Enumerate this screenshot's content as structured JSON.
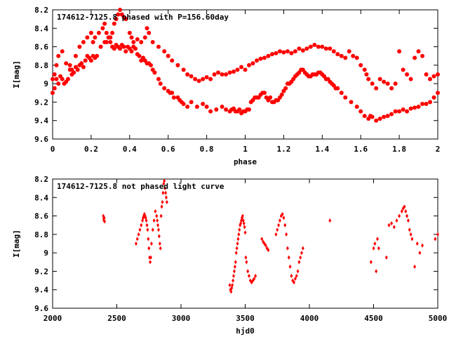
{
  "chart_data": [
    {
      "type": "scatter",
      "title": "174612-7125.8 phased with P=156.60day",
      "xlabel": "phase",
      "ylabel": "I[mag]",
      "xlim": [
        0,
        2
      ],
      "ylim": [
        9.6,
        8.2
      ],
      "y_inverted": true,
      "x_ticks": [
        "0",
        "0.2",
        "0.4",
        "0.6",
        "0.8",
        "1",
        "1.2",
        "1.4",
        "1.6",
        "1.8",
        "2"
      ],
      "x_tick_values": [
        0,
        0.2,
        0.4,
        0.6,
        0.8,
        1.0,
        1.2,
        1.4,
        1.6,
        1.8,
        2.0
      ],
      "y_ticks": [
        "8.2",
        "8.4",
        "8.6",
        "8.8",
        "9",
        "9.2",
        "9.4",
        "9.6"
      ],
      "y_tick_values": [
        8.2,
        8.4,
        8.6,
        8.8,
        9.0,
        9.2,
        9.4,
        9.6
      ],
      "marker": "plus-hexagon",
      "color": "#ff0000",
      "series": [
        {
          "x": [
            0.0,
            0.01,
            0.02,
            0.03,
            0.04,
            0.05,
            0.06,
            0.07,
            0.08,
            0.09,
            0.1,
            0.11,
            0.12,
            0.13,
            0.14,
            0.15,
            0.16,
            0.17,
            0.18,
            0.19,
            0.2,
            0.21,
            0.22,
            0.23,
            0.25,
            0.27,
            0.28,
            0.29,
            0.3,
            0.31,
            0.32,
            0.33,
            0.34,
            0.35,
            0.36,
            0.37,
            0.38,
            0.39,
            0.4,
            0.41,
            0.42,
            0.43,
            0.44,
            0.45,
            0.46,
            0.47,
            0.48,
            0.49,
            0.5,
            0.51,
            0.52,
            0.53,
            0.55,
            0.56,
            0.58,
            0.6,
            0.61,
            0.62,
            0.63,
            0.65,
            0.66,
            0.67,
            0.68,
            0.7,
            0.72,
            0.75,
            0.78,
            0.8,
            0.82,
            0.85,
            0.88,
            0.9,
            0.92,
            0.93,
            0.94,
            0.95,
            0.96,
            0.97,
            0.98,
            0.99,
            1.0,
            1.01,
            1.02,
            1.03,
            1.04,
            1.05,
            1.06,
            1.07,
            1.08,
            1.09,
            1.1,
            1.11,
            1.12,
            1.13,
            1.14,
            1.15,
            1.16,
            1.17,
            1.18,
            1.19,
            1.2,
            1.21,
            1.22,
            1.23,
            1.24,
            1.25,
            1.26,
            1.27,
            1.28,
            1.29,
            1.3,
            1.31,
            1.32,
            1.33,
            1.34,
            1.35,
            1.36,
            1.37,
            1.38,
            1.39,
            1.4,
            1.41,
            1.42,
            1.43,
            1.44,
            1.45,
            1.46,
            1.47,
            1.48,
            1.5,
            1.52,
            1.55,
            1.58,
            1.6,
            1.62,
            1.64,
            1.65,
            1.66,
            1.68,
            1.7,
            1.72,
            1.74,
            1.76,
            1.78,
            1.8,
            1.82,
            1.84,
            1.86,
            1.88,
            1.9,
            1.92,
            1.94,
            1.96,
            1.98,
            2.0
          ],
          "y": [
            9.1,
            9.05,
            8.95,
            9.0,
            8.92,
            8.95,
            9.0,
            8.98,
            8.95,
            8.85,
            8.9,
            8.88,
            8.82,
            8.85,
            8.8,
            8.78,
            8.82,
            8.75,
            8.7,
            8.72,
            8.75,
            8.7,
            8.72,
            8.7,
            8.6,
            8.55,
            8.55,
            8.5,
            8.55,
            8.6,
            8.62,
            8.58,
            8.6,
            8.62,
            8.58,
            8.6,
            8.65,
            8.6,
            8.62,
            8.65,
            8.6,
            8.62,
            8.68,
            8.7,
            8.75,
            8.72,
            8.75,
            8.78,
            8.78,
            8.8,
            8.85,
            8.88,
            8.95,
            9.0,
            9.05,
            9.08,
            9.1,
            9.1,
            9.15,
            9.15,
            9.18,
            9.2,
            9.22,
            9.25,
            9.2,
            9.25,
            9.22,
            9.25,
            9.3,
            9.28,
            9.25,
            9.28,
            9.3,
            9.28,
            9.27,
            9.3,
            9.3,
            9.28,
            9.32,
            9.3,
            9.3,
            9.28,
            9.28,
            9.2,
            9.18,
            9.15,
            9.15,
            9.15,
            9.12,
            9.1,
            9.1,
            9.15,
            9.18,
            9.15,
            9.2,
            9.2,
            9.18,
            9.18,
            9.15,
            9.12,
            9.08,
            9.05,
            9.0,
            9.0,
            8.98,
            8.95,
            8.92,
            8.9,
            8.88,
            8.85,
            8.85,
            8.88,
            8.9,
            8.92,
            8.92,
            8.9,
            8.9,
            8.9,
            8.88,
            8.88,
            8.9,
            8.92,
            8.95,
            8.95,
            8.98,
            9.0,
            9.02,
            9.05,
            9.05,
            9.1,
            9.15,
            9.2,
            9.25,
            9.3,
            9.35,
            9.38,
            9.35,
            9.36,
            9.4,
            9.38,
            9.36,
            9.35,
            9.33,
            9.3,
            9.3,
            9.28,
            9.3,
            9.27,
            9.26,
            9.25,
            9.22,
            9.22,
            9.2,
            9.15,
            9.1
          ]
        },
        {
          "x": [
            0.0,
            0.01,
            0.02,
            0.03,
            0.05,
            0.07,
            0.09,
            0.1,
            0.12,
            0.14,
            0.16,
            0.18,
            0.2,
            0.21,
            0.22,
            0.24,
            0.26,
            0.27,
            0.28,
            0.3,
            0.31,
            0.32,
            0.33,
            0.34,
            0.35,
            0.36,
            0.37,
            0.38,
            0.4,
            0.41,
            0.42,
            0.44,
            0.46,
            0.48,
            0.49,
            0.5,
            0.52,
            0.55,
            0.58,
            0.6,
            0.62,
            0.65,
            0.68,
            0.7,
            0.72,
            0.74,
            0.76,
            0.78,
            0.8,
            0.82,
            0.84,
            0.86,
            0.88,
            0.9,
            0.92,
            0.94,
            0.96,
            0.98,
            1.0,
            1.02,
            1.04,
            1.06,
            1.08,
            1.1,
            1.12,
            1.14,
            1.16,
            1.18,
            1.2,
            1.22,
            1.24,
            1.26,
            1.28,
            1.3,
            1.32,
            1.34,
            1.36,
            1.38,
            1.4,
            1.42,
            1.44,
            1.46,
            1.48,
            1.5,
            1.52,
            1.54,
            1.56,
            1.58,
            1.6,
            1.62,
            1.63,
            1.64,
            1.66,
            1.68,
            1.7,
            1.72,
            1.74,
            1.76,
            1.78,
            1.8,
            1.82,
            1.84,
            1.86,
            1.88,
            1.9,
            1.92,
            1.94,
            1.96,
            1.98,
            2.0
          ],
          "y": [
            8.95,
            8.9,
            8.8,
            8.7,
            8.65,
            8.78,
            8.8,
            8.85,
            8.7,
            8.6,
            8.55,
            8.5,
            8.45,
            8.55,
            8.5,
            8.45,
            8.4,
            8.35,
            8.45,
            8.5,
            8.45,
            8.35,
            8.3,
            8.25,
            8.2,
            8.25,
            8.28,
            8.3,
            8.45,
            8.5,
            8.55,
            8.52,
            8.55,
            8.5,
            8.4,
            8.45,
            8.55,
            8.6,
            8.65,
            8.7,
            8.75,
            8.8,
            8.85,
            8.9,
            8.92,
            8.95,
            8.97,
            8.95,
            8.93,
            8.95,
            8.9,
            8.88,
            8.9,
            8.9,
            8.88,
            8.87,
            8.85,
            8.82,
            8.85,
            8.8,
            8.78,
            8.75,
            8.73,
            8.72,
            8.7,
            8.68,
            8.67,
            8.65,
            8.66,
            8.65,
            8.67,
            8.65,
            8.62,
            8.64,
            8.62,
            8.6,
            8.58,
            8.6,
            8.6,
            8.62,
            8.62,
            8.65,
            8.68,
            8.7,
            8.72,
            8.65,
            8.7,
            8.72,
            8.8,
            8.85,
            8.9,
            8.95,
            9.0,
            9.05,
            8.95,
            8.98,
            9.0,
            9.05,
            9.0,
            8.65,
            8.85,
            8.9,
            8.95,
            8.72,
            8.65,
            8.7,
            8.9,
            8.95,
            8.92,
            8.9
          ]
        }
      ]
    },
    {
      "type": "scatter",
      "title": "174612-7125.8 not phased light curve",
      "xlabel": "hjd0",
      "ylabel": "I[mag]",
      "xlim": [
        2000,
        5000
      ],
      "ylim": [
        9.6,
        8.2
      ],
      "y_inverted": true,
      "x_ticks": [
        "2000",
        "2500",
        "3000",
        "3500",
        "4000",
        "4500",
        "5000"
      ],
      "x_tick_values": [
        2000,
        2500,
        3000,
        3500,
        4000,
        4500,
        5000
      ],
      "y_ticks": [
        "8.2",
        "8.4",
        "8.6",
        "8.8",
        "9",
        "9.2",
        "9.4",
        "9.6"
      ],
      "y_tick_values": [
        8.2,
        8.4,
        8.6,
        8.8,
        9.0,
        9.2,
        9.4,
        9.6
      ],
      "marker": "diamond",
      "color": "#ff0000",
      "series": [
        {
          "x": [
            2395,
            2398,
            2400,
            2402,
            2405,
            2650,
            2660,
            2670,
            2680,
            2690,
            2700,
            2705,
            2710,
            2715,
            2720,
            2725,
            2730,
            2735,
            2740,
            2745,
            2750,
            2755,
            2760,
            2765,
            2770,
            2780,
            2790,
            2800,
            2810,
            2815,
            2820,
            2825,
            2830,
            2835,
            2840,
            2845,
            2850,
            2855,
            2860,
            2865,
            2870,
            2875,
            2880,
            2885,
            2890,
            3380,
            3385,
            3390,
            3395,
            3400,
            3405,
            3410,
            3415,
            3420,
            3425,
            3430,
            3435,
            3440,
            3445,
            3450,
            3455,
            3460,
            3465,
            3470,
            3475,
            3480,
            3485,
            3490,
            3495,
            3500,
            3505,
            3510,
            3520,
            3530,
            3540,
            3550,
            3560,
            3570,
            3580,
            3630,
            3640,
            3650,
            3660,
            3670,
            3680,
            3740,
            3750,
            3760,
            3770,
            3780,
            3790,
            3800,
            3810,
            3820,
            3830,
            3840,
            3850,
            3860,
            3870,
            3880,
            3890,
            3900,
            3910,
            3920,
            3930,
            3940,
            3950,
            4160,
            4480,
            4500,
            4510,
            4520,
            4530,
            4540,
            4600,
            4620,
            4640,
            4660,
            4680,
            4700,
            4720,
            4730,
            4740,
            4750,
            4760,
            4770,
            4780,
            4790,
            4800,
            4820,
            4840,
            4860,
            4880,
            4980,
            5000
          ],
          "y": [
            8.6,
            8.63,
            8.65,
            8.62,
            8.66,
            8.9,
            8.85,
            8.8,
            8.75,
            8.7,
            8.65,
            8.62,
            8.6,
            8.58,
            8.6,
            8.62,
            8.65,
            8.7,
            8.75,
            8.85,
            8.95,
            9.05,
            9.1,
            9.05,
            8.9,
            8.75,
            8.65,
            8.55,
            8.6,
            8.65,
            8.7,
            8.75,
            8.82,
            8.9,
            8.95,
            8.6,
            8.5,
            8.45,
            8.35,
            8.25,
            8.22,
            8.3,
            8.35,
            8.4,
            8.45,
            9.35,
            9.4,
            9.42,
            9.38,
            9.35,
            9.3,
            9.25,
            9.2,
            9.15,
            9.1,
            9.0,
            8.95,
            8.9,
            8.85,
            8.8,
            8.75,
            8.7,
            8.68,
            8.65,
            8.62,
            8.6,
            8.65,
            8.68,
            8.72,
            8.78,
            9.05,
            9.1,
            9.2,
            9.25,
            9.3,
            9.32,
            9.3,
            9.28,
            9.25,
            8.85,
            8.88,
            8.9,
            8.92,
            8.95,
            8.97,
            8.8,
            8.75,
            8.7,
            8.65,
            8.6,
            8.58,
            8.62,
            8.7,
            8.8,
            8.95,
            9.05,
            9.15,
            9.25,
            9.3,
            9.32,
            9.28,
            9.25,
            9.2,
            9.1,
            9.05,
            9.0,
            8.95,
            8.65,
            9.1,
            8.95,
            8.9,
            9.2,
            8.85,
            8.95,
            9.05,
            8.7,
            8.68,
            8.72,
            8.65,
            8.6,
            8.55,
            8.52,
            8.5,
            8.55,
            8.6,
            8.65,
            8.75,
            8.8,
            8.85,
            9.15,
            8.9,
            9.0,
            8.92,
            8.85,
            8.8
          ]
        }
      ]
    }
  ]
}
